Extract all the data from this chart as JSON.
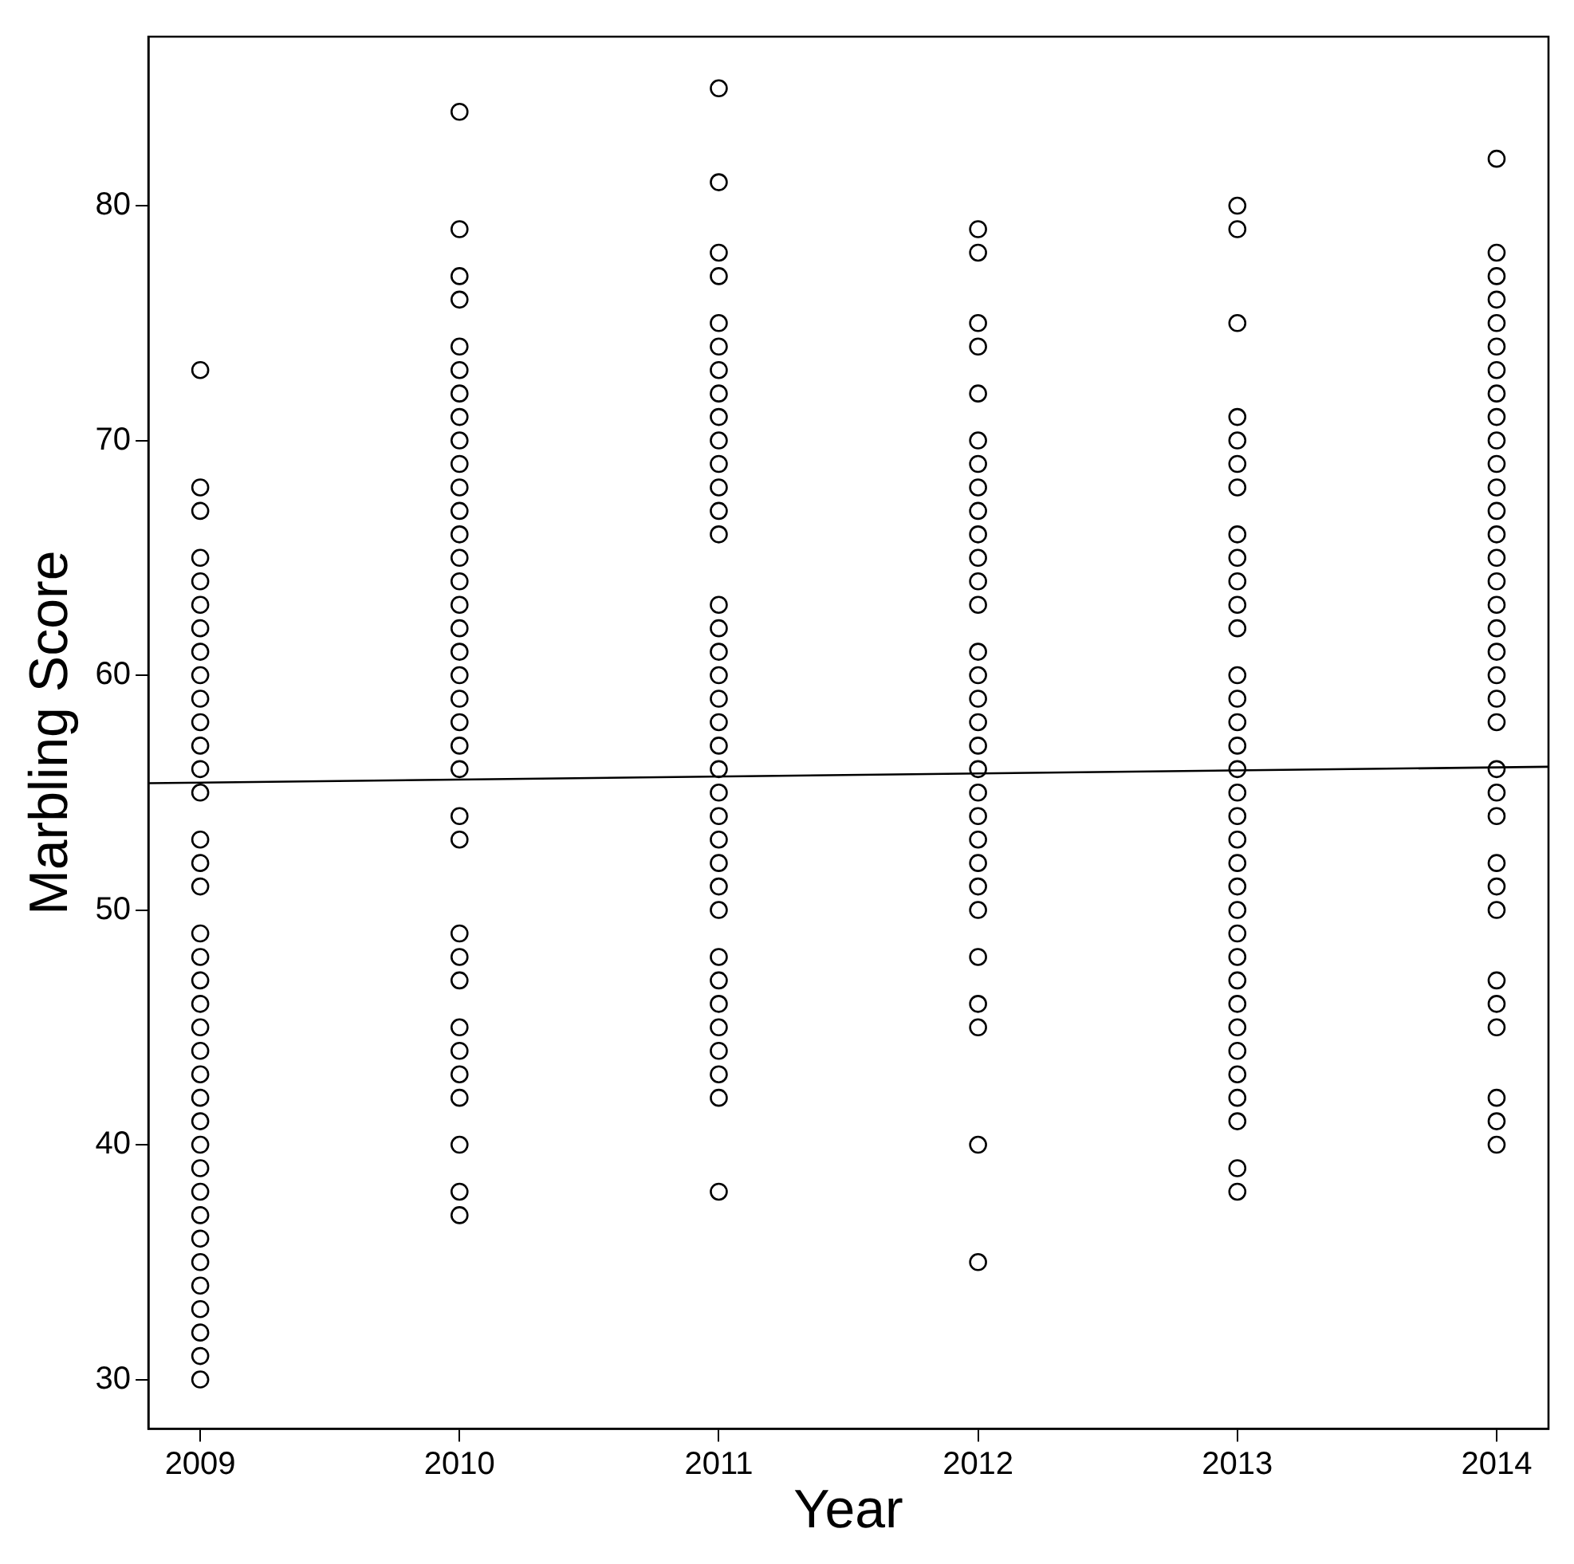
{
  "chart_data": {
    "type": "scatter",
    "xlabel": "Year",
    "ylabel": "Marbling Score",
    "xlim": [
      2008.8,
      2014.2
    ],
    "ylim": [
      27.9,
      87.2
    ],
    "xticks": [
      2009,
      2010,
      2011,
      2012,
      2013,
      2014
    ],
    "yticks": [
      30,
      40,
      50,
      60,
      70,
      80
    ],
    "grid": false,
    "legend": false,
    "marker": "circle",
    "series": [
      {
        "color": "#000000",
        "x": [
          2009,
          2009,
          2009,
          2009,
          2009,
          2009,
          2009,
          2009,
          2009,
          2009,
          2009,
          2009,
          2009,
          2009,
          2009,
          2009,
          2009,
          2009,
          2009,
          2009,
          2009,
          2009,
          2009,
          2009,
          2009,
          2009,
          2009,
          2009,
          2009,
          2009,
          2009,
          2009,
          2009,
          2009,
          2009,
          2009,
          2009,
          2010,
          2010,
          2010,
          2010,
          2010,
          2010,
          2010,
          2010,
          2010,
          2010,
          2010,
          2010,
          2010,
          2010,
          2010,
          2010,
          2010,
          2010,
          2010,
          2010,
          2010,
          2010,
          2010,
          2010,
          2010,
          2010,
          2010,
          2010,
          2010,
          2010,
          2010,
          2010,
          2010,
          2010,
          2010,
          2011,
          2011,
          2011,
          2011,
          2011,
          2011,
          2011,
          2011,
          2011,
          2011,
          2011,
          2011,
          2011,
          2011,
          2011,
          2011,
          2011,
          2011,
          2011,
          2011,
          2011,
          2011,
          2011,
          2011,
          2011,
          2011,
          2011,
          2011,
          2011,
          2011,
          2011,
          2011,
          2011,
          2011,
          2011,
          2011,
          2012,
          2012,
          2012,
          2012,
          2012,
          2012,
          2012,
          2012,
          2012,
          2012,
          2012,
          2012,
          2012,
          2012,
          2012,
          2012,
          2012,
          2012,
          2012,
          2012,
          2012,
          2012,
          2012,
          2012,
          2012,
          2012,
          2012,
          2012,
          2012,
          2012,
          2013,
          2013,
          2013,
          2013,
          2013,
          2013,
          2013,
          2013,
          2013,
          2013,
          2013,
          2013,
          2013,
          2013,
          2013,
          2013,
          2013,
          2013,
          2013,
          2013,
          2013,
          2013,
          2013,
          2013,
          2013,
          2013,
          2013,
          2013,
          2013,
          2013,
          2013,
          2013,
          2013,
          2013,
          2014,
          2014,
          2014,
          2014,
          2014,
          2014,
          2014,
          2014,
          2014,
          2014,
          2014,
          2014,
          2014,
          2014,
          2014,
          2014,
          2014,
          2014,
          2014,
          2014,
          2014,
          2014,
          2014,
          2014,
          2014,
          2014,
          2014,
          2014,
          2014,
          2014,
          2014,
          2014,
          2014,
          2014
        ],
        "values": [
          73,
          68,
          67,
          65,
          64,
          63,
          62,
          61,
          60,
          59,
          58,
          57,
          56,
          55,
          53,
          52,
          51,
          49,
          48,
          47,
          46,
          45,
          44,
          43,
          42,
          41,
          40,
          39,
          38,
          37,
          36,
          35,
          34,
          33,
          32,
          31,
          30,
          84,
          79,
          77,
          76,
          74,
          73,
          72,
          71,
          70,
          69,
          68,
          67,
          66,
          65,
          64,
          63,
          62,
          61,
          60,
          59,
          58,
          57,
          56,
          54,
          53,
          49,
          48,
          47,
          45,
          44,
          43,
          42,
          40,
          38,
          37,
          85,
          81,
          78,
          77,
          75,
          74,
          73,
          72,
          71,
          70,
          69,
          68,
          67,
          66,
          63,
          62,
          61,
          60,
          59,
          58,
          57,
          56,
          55,
          54,
          53,
          52,
          51,
          50,
          48,
          47,
          46,
          45,
          44,
          43,
          42,
          38,
          79,
          78,
          75,
          74,
          72,
          70,
          69,
          68,
          67,
          66,
          65,
          64,
          63,
          61,
          60,
          59,
          58,
          57,
          56,
          55,
          54,
          53,
          52,
          51,
          50,
          48,
          46,
          45,
          40,
          35,
          80,
          79,
          75,
          71,
          70,
          69,
          68,
          66,
          65,
          64,
          63,
          62,
          60,
          59,
          58,
          57,
          56,
          55,
          54,
          53,
          52,
          51,
          50,
          49,
          48,
          47,
          46,
          45,
          44,
          43,
          42,
          41,
          39,
          38,
          82,
          78,
          77,
          76,
          75,
          74,
          73,
          72,
          71,
          70,
          69,
          68,
          67,
          66,
          65,
          64,
          63,
          62,
          61,
          60,
          59,
          58,
          56,
          55,
          54,
          52,
          51,
          50,
          47,
          46,
          45,
          42,
          41,
          40
        ]
      },
      {
        "type": "line",
        "color": "#000000",
        "marker": "none",
        "x": [
          2008.8,
          2014.2
        ],
        "values": [
          55.4,
          56.1
        ]
      }
    ]
  }
}
